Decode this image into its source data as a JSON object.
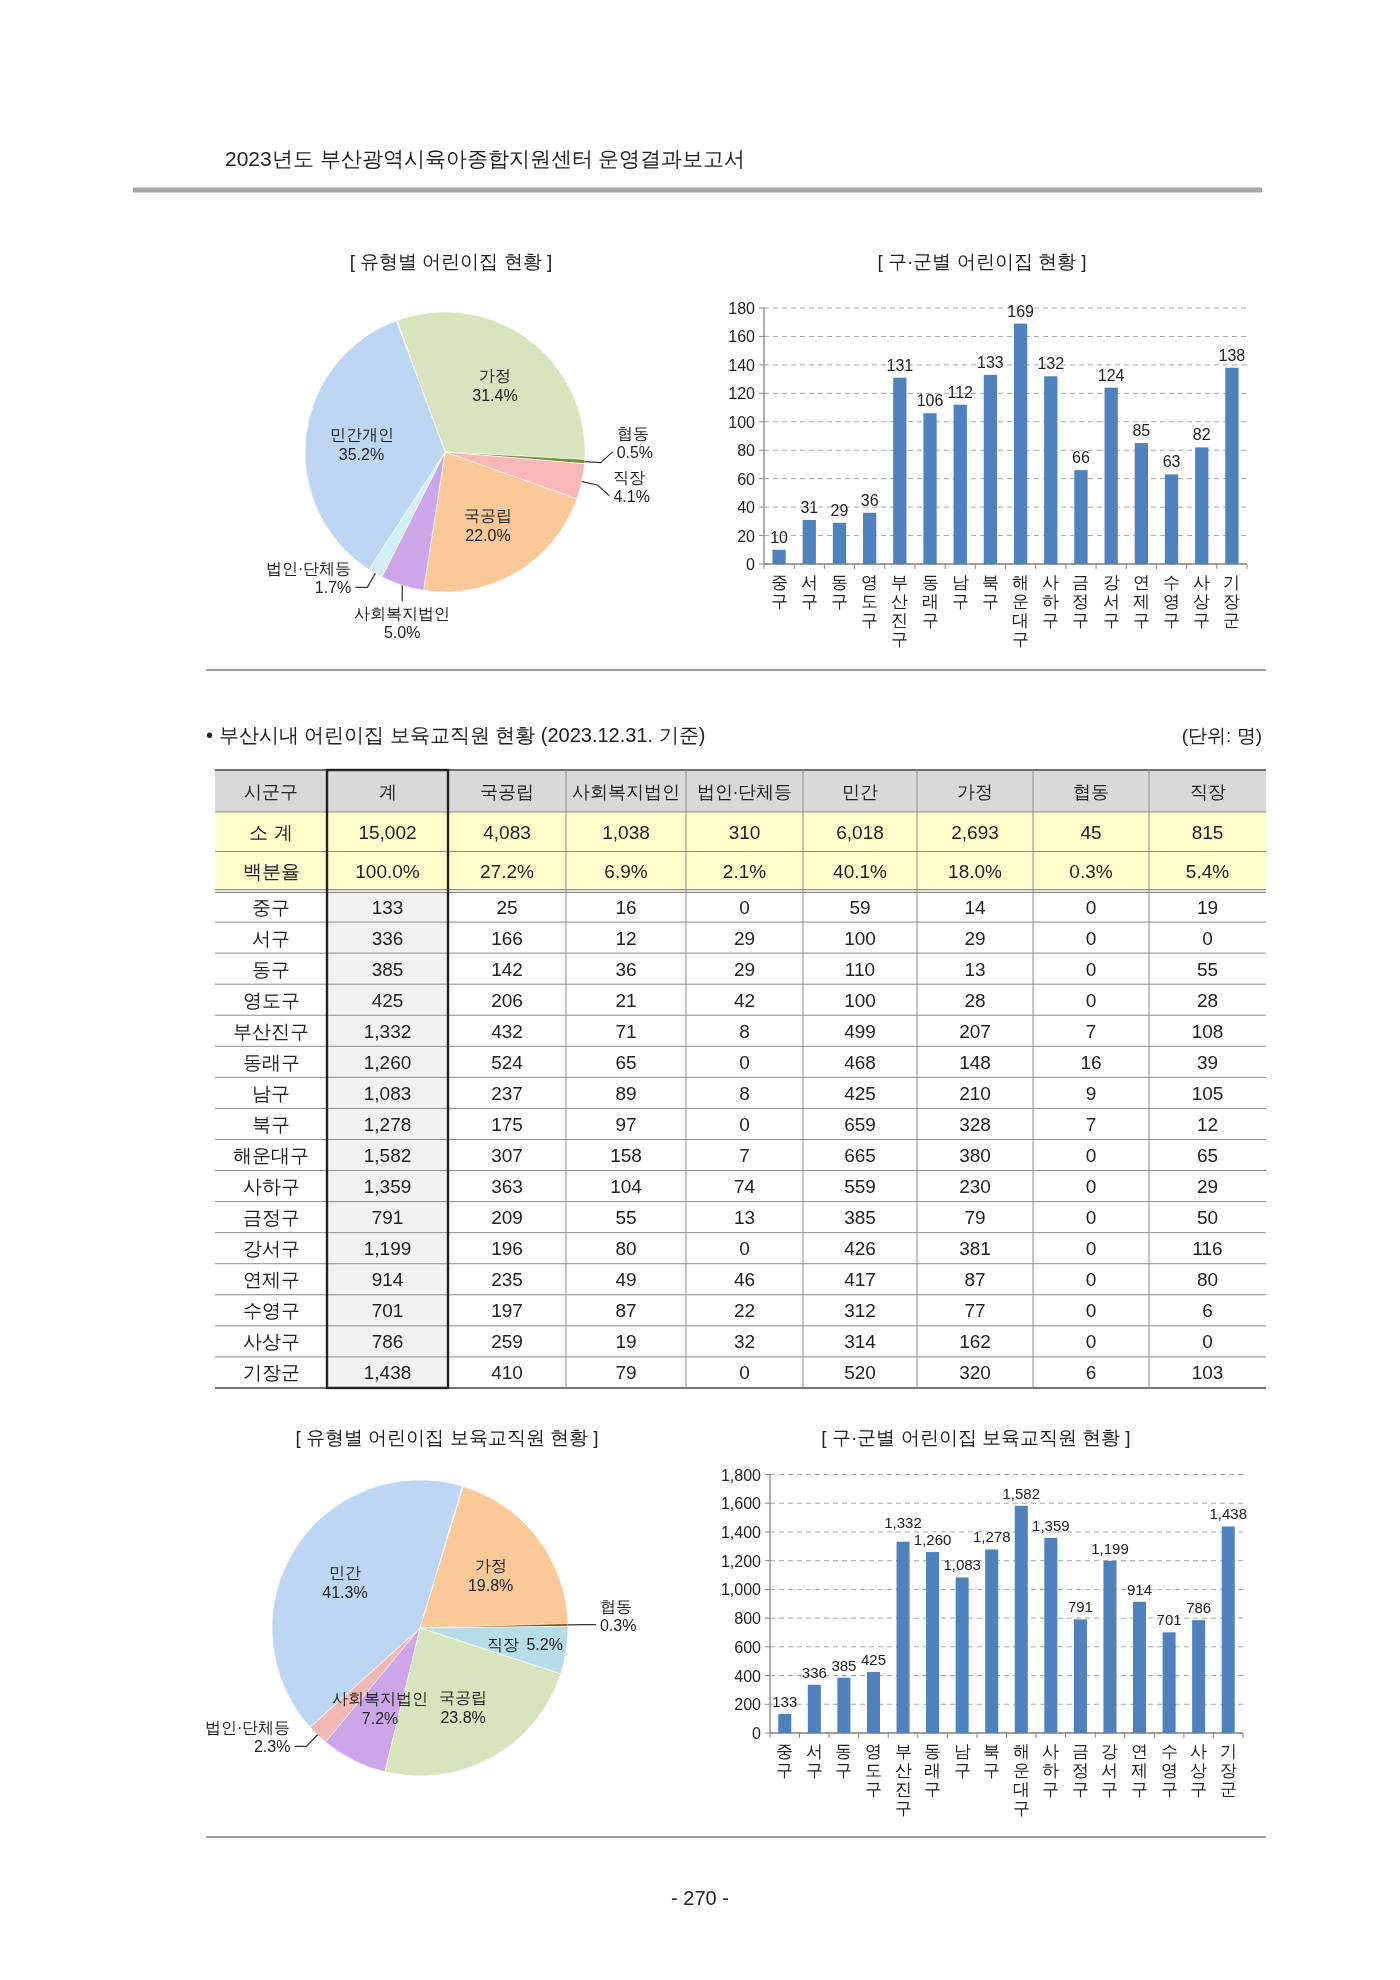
{
  "chart_data": [
    {
      "type": "other",
      "title": "2023년도 부산광역시육아종합지원센터 운영결과보고서",
      "annotations": [
        "- 270 -"
      ]
    },
    {
      "type": "pie",
      "title": "[ 유형별 어린이집 현황 ]",
      "categories": [
        "가정",
        "협동",
        "직장",
        "국공립",
        "사회복지법인",
        "법인·단체등",
        "민간개인"
      ],
      "values": [
        31.4,
        0.5,
        4.1,
        22.0,
        5.0,
        1.7,
        35.2
      ],
      "colors": [
        "#d7e4bd",
        "#76923c",
        "#f8b8b8",
        "#fbc898",
        "#cca6e8",
        "#d4eff7",
        "#bcd6f4"
      ],
      "value_labels": [
        "31.4%",
        "0.5%",
        "4.1%",
        "22.0%",
        "5.0%",
        "1.7%",
        "35.2%"
      ]
    },
    {
      "type": "bar",
      "title": "[ 구·군별 어린이집 현황 ]",
      "categories": [
        "중구",
        "서구",
        "동구",
        "영도구",
        "부산진구",
        "동래구",
        "남구",
        "북구",
        "해운대구",
        "사하구",
        "금정구",
        "강서구",
        "연제구",
        "수영구",
        "사상구",
        "기장군"
      ],
      "values": [
        10,
        31,
        29,
        36,
        131,
        106,
        112,
        133,
        169,
        132,
        66,
        124,
        85,
        63,
        82,
        138
      ],
      "color": "#4f81bd",
      "ylim": [
        0,
        180
      ],
      "yticks": [
        0,
        20,
        40,
        60,
        80,
        100,
        120,
        140,
        160,
        180
      ],
      "grid": "y",
      "data_labels": true
    },
    {
      "type": "other",
      "title": "• 부산시내 어린이집 보육교직원 현황 (2023.12.31. 기준)",
      "annotations": [
        "(단위: 명)"
      ],
      "ylabel": "시군구",
      "categories": [
        "계",
        "국공립",
        "사회복지법인",
        "법인·단체등",
        "민간",
        "가정",
        "협동",
        "직장"
      ],
      "y_categories": [
        "소 계",
        "백분율",
        "중구",
        "서구",
        "동구",
        "영도구",
        "부산진구",
        "동래구",
        "남구",
        "북구",
        "해운대구",
        "사하구",
        "금정구",
        "강서구",
        "연제구",
        "수영구",
        "사상구",
        "기장군"
      ],
      "cell_labels": [
        [
          "15,002",
          "4,083",
          "1,038",
          "310",
          "6,018",
          "2,693",
          "45",
          "815"
        ],
        [
          "100.0%",
          "27.2%",
          "6.9%",
          "2.1%",
          "40.1%",
          "18.0%",
          "0.3%",
          "5.4%"
        ],
        [
          "133",
          "25",
          "16",
          "0",
          "59",
          "14",
          "0",
          "19"
        ],
        [
          "336",
          "166",
          "12",
          "29",
          "100",
          "29",
          "0",
          "0"
        ],
        [
          "385",
          "142",
          "36",
          "29",
          "110",
          "13",
          "0",
          "55"
        ],
        [
          "425",
          "206",
          "21",
          "42",
          "100",
          "28",
          "0",
          "28"
        ],
        [
          "1,332",
          "432",
          "71",
          "8",
          "499",
          "207",
          "7",
          "108"
        ],
        [
          "1,260",
          "524",
          "65",
          "0",
          "468",
          "148",
          "16",
          "39"
        ],
        [
          "1,083",
          "237",
          "89",
          "8",
          "425",
          "210",
          "9",
          "105"
        ],
        [
          "1,278",
          "175",
          "97",
          "0",
          "659",
          "328",
          "7",
          "12"
        ],
        [
          "1,582",
          "307",
          "158",
          "7",
          "665",
          "380",
          "0",
          "65"
        ],
        [
          "1,359",
          "363",
          "104",
          "74",
          "559",
          "230",
          "0",
          "29"
        ],
        [
          "791",
          "209",
          "55",
          "13",
          "385",
          "79",
          "0",
          "50"
        ],
        [
          "1,199",
          "196",
          "80",
          "0",
          "426",
          "381",
          "0",
          "116"
        ],
        [
          "914",
          "235",
          "49",
          "46",
          "417",
          "87",
          "0",
          "80"
        ],
        [
          "701",
          "197",
          "87",
          "22",
          "312",
          "77",
          "0",
          "6"
        ],
        [
          "786",
          "259",
          "19",
          "32",
          "314",
          "162",
          "0",
          "0"
        ],
        [
          "1,438",
          "410",
          "79",
          "0",
          "520",
          "320",
          "6",
          "103"
        ]
      ]
    },
    {
      "type": "pie",
      "title": "[ 유형별 어린이집 보육교직원 현황 ]",
      "categories": [
        "가정",
        "협동",
        "직장",
        "국공립",
        "사회복지법인",
        "법인·단체등",
        "민간"
      ],
      "values": [
        19.8,
        0.3,
        5.2,
        23.8,
        7.2,
        2.3,
        41.3
      ],
      "colors": [
        "#fbc898",
        "#974806",
        "#b7dee8",
        "#d7e4bd",
        "#cca6e8",
        "#f4b8b4",
        "#bcd6f4"
      ],
      "value_labels": [
        "19.8%",
        "0.3%",
        "5.2%",
        "23.8%",
        "7.2%",
        "2.3%",
        "41.3%"
      ]
    },
    {
      "type": "bar",
      "title": "[ 구·군별 어린이집 보육교직원 현황 ]",
      "categories": [
        "중구",
        "서구",
        "동구",
        "영도구",
        "부산진구",
        "동래구",
        "남구",
        "북구",
        "해운대구",
        "사하구",
        "금정구",
        "강서구",
        "연제구",
        "수영구",
        "사상구",
        "기장군"
      ],
      "values": [
        133,
        336,
        385,
        425,
        1332,
        1260,
        1083,
        1278,
        1582,
        1359,
        791,
        1199,
        914,
        701,
        786,
        1438
      ],
      "color": "#4f81bd",
      "ylim": [
        0,
        1800
      ],
      "yticks": [
        0,
        200,
        400,
        600,
        800,
        {
          "value": 1000,
          "label": "1,000"
        },
        {
          "value": 1200,
          "label": "1,200"
        },
        {
          "value": 1400,
          "label": "1,400"
        },
        {
          "value": 1600,
          "label": "1,600"
        },
        {
          "value": 1800,
          "label": "1,800"
        }
      ],
      "grid": "y",
      "value_labels": [
        "133",
        "336",
        "385",
        "425",
        "1,332",
        "1,260",
        "1,083",
        "1,278",
        "1,582",
        "1,359",
        "791",
        "1,199",
        "914",
        "701",
        "786",
        "1,438"
      ]
    }
  ]
}
